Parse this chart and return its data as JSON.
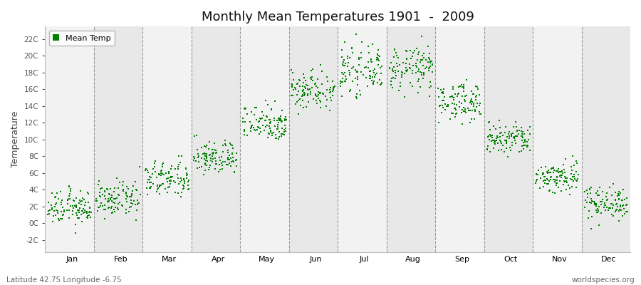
{
  "title": "Monthly Mean Temperatures 1901  -  2009",
  "ylabel": "Temperature",
  "xlabel_months": [
    "Jan",
    "Feb",
    "Mar",
    "Apr",
    "May",
    "Jun",
    "Jul",
    "Aug",
    "Sep",
    "Oct",
    "Nov",
    "Dec"
  ],
  "ytick_labels": [
    "-2C",
    "0C",
    "2C",
    "4C",
    "6C",
    "8C",
    "10C",
    "12C",
    "14C",
    "16C",
    "18C",
    "20C",
    "22C"
  ],
  "ytick_values": [
    -2,
    0,
    2,
    4,
    6,
    8,
    10,
    12,
    14,
    16,
    18,
    20,
    22
  ],
  "ylim": [
    -3.5,
    23.5
  ],
  "dot_color": "#008000",
  "dot_size": 3,
  "bg_color": "#F2F2F2",
  "legend_label": "Mean Temp",
  "footer_left": "Latitude 42.75 Longitude -6.75",
  "footer_right": "worldspecies.org",
  "monthly_means": [
    1.8,
    2.8,
    5.2,
    7.8,
    12.0,
    16.0,
    18.2,
    18.5,
    14.5,
    10.0,
    5.5,
    2.5
  ],
  "monthly_stds": [
    1.0,
    1.0,
    1.1,
    1.0,
    1.1,
    1.2,
    1.3,
    1.3,
    1.1,
    1.0,
    1.0,
    1.0
  ],
  "n_years": 109,
  "seed": 12345
}
